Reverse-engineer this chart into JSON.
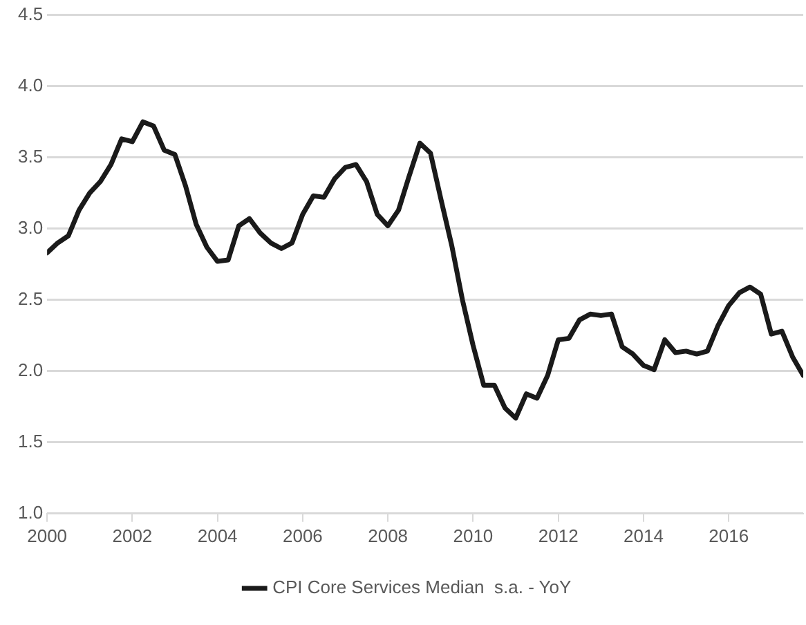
{
  "chart_data": {
    "type": "line",
    "xlim": [
      2000,
      2017.75
    ],
    "xticks": [
      2000,
      2002,
      2004,
      2006,
      2008,
      2010,
      2012,
      2014,
      2016
    ],
    "ylim": [
      1.0,
      4.5
    ],
    "yticks": [
      {
        "value": 1.0,
        "label": "1.0"
      },
      {
        "value": 1.5,
        "label": "1.5"
      },
      {
        "value": 2.0,
        "label": "2.0"
      },
      {
        "value": 2.5,
        "label": "2.5"
      },
      {
        "value": 3.0,
        "label": "3.0"
      },
      {
        "value": 3.5,
        "label": "3.5"
      },
      {
        "value": 4.0,
        "label": "4.0"
      },
      {
        "value": 4.5,
        "label": "4.5"
      }
    ],
    "grid": "y",
    "legend": "bottom",
    "marker": "none",
    "line_style": "solid",
    "series": [
      {
        "name": "CPI Core Services Median  s.a. - YoY",
        "color": "#1a1a1a",
        "x": [
          2000,
          2000.25,
          2000.5,
          2000.75,
          2001,
          2001.25,
          2001.5,
          2001.75,
          2002,
          2002.25,
          2002.5,
          2002.75,
          2003,
          2003.25,
          2003.5,
          2003.75,
          2004,
          2004.25,
          2004.5,
          2004.75,
          2005,
          2005.25,
          2005.5,
          2005.75,
          2006,
          2006.25,
          2006.5,
          2006.75,
          2007,
          2007.25,
          2007.5,
          2007.75,
          2008,
          2008.25,
          2008.5,
          2008.75,
          2009,
          2009.25,
          2009.5,
          2009.75,
          2010,
          2010.25,
          2010.5,
          2010.75,
          2011,
          2011.25,
          2011.5,
          2011.75,
          2012,
          2012.25,
          2012.5,
          2012.75,
          2013,
          2013.25,
          2013.5,
          2013.75,
          2014,
          2014.25,
          2014.5,
          2014.75,
          2015,
          2015.25,
          2015.5,
          2015.75,
          2016,
          2016.25,
          2016.5,
          2016.75,
          2017,
          2017.25,
          2017.5,
          2017.75
        ],
        "values": [
          2.83,
          2.9,
          2.95,
          3.13,
          3.25,
          3.33,
          3.45,
          3.63,
          3.61,
          3.75,
          3.72,
          3.55,
          3.52,
          3.3,
          3.03,
          2.87,
          2.77,
          2.78,
          3.02,
          3.07,
          2.97,
          2.9,
          2.86,
          2.9,
          3.1,
          3.23,
          3.22,
          3.35,
          3.43,
          3.45,
          3.33,
          3.1,
          3.02,
          3.13,
          3.37,
          3.6,
          3.53,
          3.2,
          2.88,
          2.5,
          2.18,
          1.9,
          1.9,
          1.74,
          1.67,
          1.84,
          1.81,
          1.97,
          2.22,
          2.23,
          2.36,
          2.4,
          2.39,
          2.4,
          2.17,
          2.12,
          2.04,
          2.01,
          2.22,
          2.13,
          2.14,
          2.12,
          2.14,
          2.32,
          2.46,
          2.55,
          2.59,
          2.54,
          2.26,
          2.28,
          2.1,
          1.97
        ]
      }
    ]
  }
}
